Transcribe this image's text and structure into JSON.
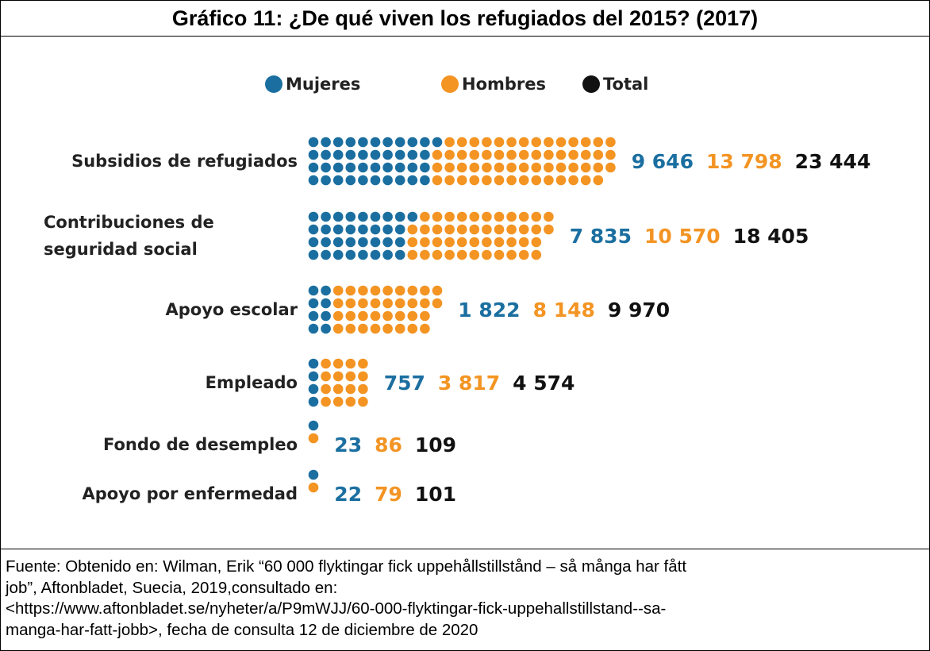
{
  "chart_data": {
    "type": "dot-bar",
    "title": "Gráfico 11: ¿De qué viven los refugiados del 2015? (2017)",
    "categories": [
      "Subsidios de refugiados",
      "Contribuciones de seguridad social",
      "Apoyo escolar",
      "Empleado",
      "Fondo de desempleo",
      "Apoyo por enfermedad"
    ],
    "series": [
      {
        "name": "Mujeres",
        "color": "#1b6fa0",
        "values": [
          9646,
          7835,
          1822,
          757,
          23,
          22
        ],
        "value_labels": [
          "9 646",
          "7 835",
          "1 822",
          "757",
          "23",
          "22"
        ]
      },
      {
        "name": "Hombres",
        "color": "#f39423",
        "values": [
          13798,
          10570,
          8148,
          3817,
          86,
          79
        ],
        "value_labels": [
          "13 798",
          "10 570",
          "8 148",
          "3 817",
          "86",
          "79"
        ]
      },
      {
        "name": "Total",
        "color": "#111111",
        "values": [
          23444,
          18405,
          9970,
          4574,
          109,
          101
        ],
        "value_labels": [
          "23 444",
          "18 405",
          "9 970",
          "4 574",
          "109",
          "101"
        ]
      }
    ]
  },
  "source": [
    "Fuente: Obtenido en: Wilman, Erik “60 000 flyktingar fick uppehållstillstånd – så många har fått",
    "job”, Aftonbladet, Suecia, 2019,consultado en:",
    "<https://www.aftonbladet.se/nyheter/a/P9mWJJ/60-000-flyktingar-fick-uppehallstillstand--sa-",
    "manga-har-fatt-jobb>, fecha de consulta 12 de diciembre de 2020"
  ]
}
